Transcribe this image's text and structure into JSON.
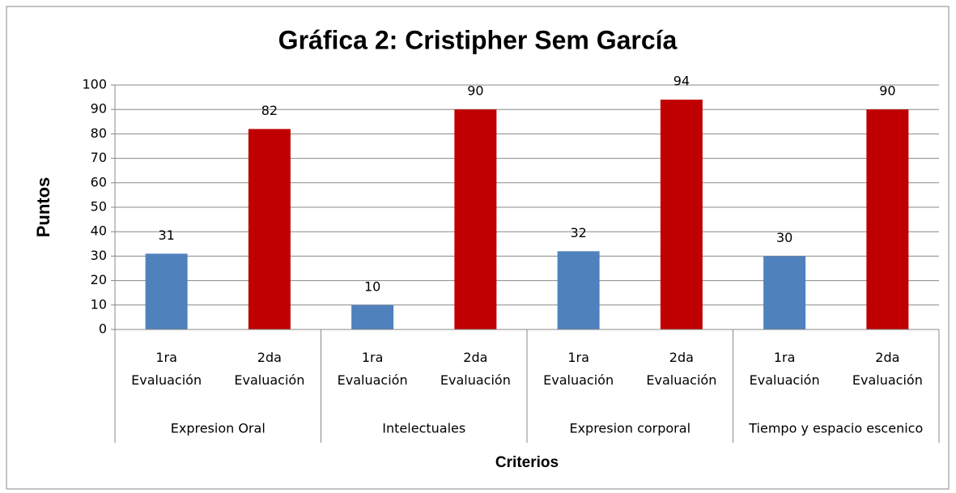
{
  "chart_data": {
    "type": "bar",
    "title": "Gráfica 2: Cristipher Sem García",
    "y_label": "Puntos",
    "x_label": "Criterios",
    "categories": [
      "1ra Evaluación",
      "2da Evaluación",
      "1ra Evaluación",
      "2da Evaluación",
      "1ra Evaluación",
      "2da Evaluación",
      "1ra Evaluación",
      "2da Evaluación"
    ],
    "groups": [
      "Expresion Oral",
      "Intelectuales",
      "Expresion corporal",
      "Tiempo y espacio escenico"
    ],
    "values": [
      31,
      82,
      10,
      90,
      32,
      94,
      30,
      90
    ],
    "colors": [
      "#4f81bd",
      "#c00000",
      "#4f81bd",
      "#c00000",
      "#4f81bd",
      "#c00000",
      "#4f81bd",
      "#c00000"
    ],
    "ylim": [
      0,
      100
    ],
    "yticks": [
      0,
      10,
      20,
      30,
      40,
      50,
      60,
      70,
      80,
      90,
      100
    ],
    "grid": true
  }
}
